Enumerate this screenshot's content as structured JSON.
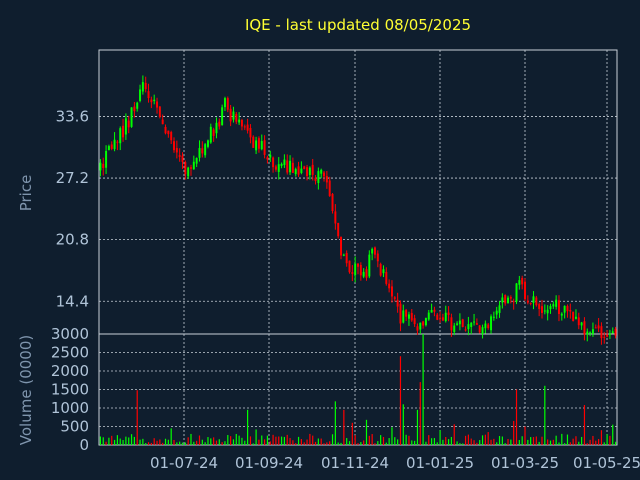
{
  "chart_data": [
    {
      "type": "candlestick",
      "title": "IQE - last updated 08/05/2025",
      "ylabel": "Price",
      "yticks": [
        14.4,
        20.8,
        27.2,
        33.6
      ],
      "ylim": [
        11.0,
        40.5
      ],
      "xticks": [
        "01-07-24",
        "01-09-24",
        "01-11-24",
        "01-01-25",
        "01-03-25",
        "01-05-25"
      ],
      "grid": true,
      "up_color": "#00ff00",
      "down_color": "#ff0000",
      "path": [
        [
          0,
          28.0
        ],
        [
          4,
          30.5
        ],
        [
          8,
          32.0
        ],
        [
          12,
          34.5
        ],
        [
          15,
          37.0
        ],
        [
          18,
          35.5
        ],
        [
          22,
          33.0
        ],
        [
          26,
          30.5
        ],
        [
          30,
          28.0
        ],
        [
          34,
          29.0
        ],
        [
          38,
          31.5
        ],
        [
          42,
          32.5
        ],
        [
          44,
          35.0
        ],
        [
          46,
          33.5
        ],
        [
          50,
          33.0
        ],
        [
          54,
          31.0
        ],
        [
          58,
          30.0
        ],
        [
          62,
          28.5
        ],
        [
          66,
          28.5
        ],
        [
          70,
          27.8
        ],
        [
          74,
          27.5
        ],
        [
          78,
          27.6
        ],
        [
          80,
          27.0
        ],
        [
          82,
          24.0
        ],
        [
          84,
          20.5
        ],
        [
          86,
          19.0
        ],
        [
          88,
          18.0
        ],
        [
          90,
          17.6
        ],
        [
          92,
          17.0
        ],
        [
          94,
          17.6
        ],
        [
          96,
          19.5
        ],
        [
          98,
          18.5
        ],
        [
          100,
          17.0
        ],
        [
          102,
          16.0
        ],
        [
          104,
          15.0
        ],
        [
          106,
          12.8
        ],
        [
          108,
          12.5
        ],
        [
          110,
          12.2
        ],
        [
          112,
          11.6
        ],
        [
          114,
          12.5
        ],
        [
          116,
          13.0
        ],
        [
          118,
          13.2
        ],
        [
          120,
          13.0
        ],
        [
          122,
          12.5
        ],
        [
          124,
          12.0
        ],
        [
          126,
          11.7
        ],
        [
          130,
          11.8
        ],
        [
          134,
          11.8
        ],
        [
          138,
          12.5
        ],
        [
          142,
          14.0
        ],
        [
          146,
          15.0
        ],
        [
          148,
          16.0
        ],
        [
          150,
          15.0
        ],
        [
          152,
          14.8
        ],
        [
          156,
          13.9
        ],
        [
          160,
          14.0
        ],
        [
          164,
          13.5
        ],
        [
          168,
          12.4
        ],
        [
          172,
          11.5
        ],
        [
          176,
          11.0
        ],
        [
          180,
          10.8
        ],
        [
          182,
          10.7
        ]
      ]
    },
    {
      "type": "bar",
      "ylabel": "Volume (0000)",
      "yticks": [
        0,
        500,
        1000,
        1500,
        2000,
        2500,
        3000
      ],
      "ylim": [
        0,
        3000
      ],
      "spikes": [
        [
          13,
          1480
        ],
        [
          25,
          450
        ],
        [
          52,
          950
        ],
        [
          55,
          420
        ],
        [
          74,
          300
        ],
        [
          83,
          1180
        ],
        [
          86,
          950
        ],
        [
          89,
          600
        ],
        [
          94,
          680
        ],
        [
          103,
          480
        ],
        [
          106,
          2400
        ],
        [
          107,
          1100
        ],
        [
          112,
          950
        ],
        [
          113,
          1700
        ],
        [
          114,
          3000
        ],
        [
          120,
          400
        ],
        [
          125,
          560
        ],
        [
          137,
          350
        ],
        [
          146,
          650
        ],
        [
          147,
          1500
        ],
        [
          150,
          500
        ],
        [
          157,
          1600
        ],
        [
          163,
          300
        ],
        [
          171,
          1080
        ],
        [
          177,
          400
        ],
        [
          181,
          550
        ]
      ]
    }
  ]
}
